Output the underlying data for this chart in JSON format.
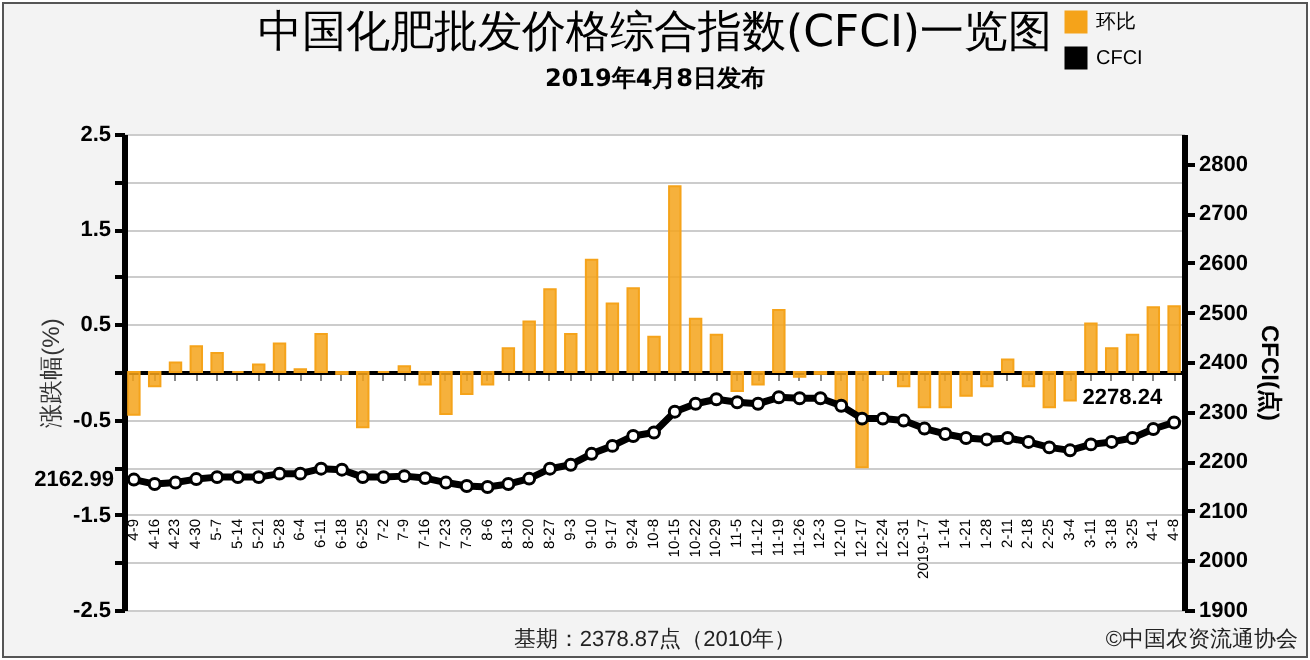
{
  "chart_data": {
    "type": "bar",
    "title": "中国化肥批发价格综合指数(CFCI)一览图",
    "subtitle": "2019年4月8日发布",
    "ylabel": "涨跌幅(%)",
    "y2label": "CFCI(点)",
    "categories": [
      "4-9",
      "4-16",
      "4-23",
      "4-30",
      "5-7",
      "5-14",
      "5-21",
      "5-28",
      "6-4",
      "6-11",
      "6-18",
      "6-25",
      "7-2",
      "7-9",
      "7-16",
      "7-23",
      "7-30",
      "8-6",
      "8-13",
      "8-20",
      "8-27",
      "9-3",
      "9-10",
      "9-17",
      "9-24",
      "10-8",
      "10-15",
      "10-22",
      "10-29",
      "11-5",
      "11-12",
      "11-19",
      "11-26",
      "12-3",
      "12-10",
      "12-17",
      "12-24",
      "12-31",
      "2019-1-7",
      "1-14",
      "1-21",
      "1-28",
      "2-11",
      "2-18",
      "2-25",
      "3-4",
      "3-11",
      "3-18",
      "3-25",
      "4-1",
      "4-8"
    ],
    "series": [
      {
        "name": "环比",
        "color": "#f5a31a",
        "values": [
          -0.45,
          -0.15,
          0.1,
          0.27,
          0.2,
          0,
          0.08,
          0.3,
          0.03,
          0.4,
          -0.02,
          -0.58,
          0,
          0.06,
          -0.13,
          -0.44,
          -0.23,
          -0.13,
          0.25,
          0.53,
          0.87,
          0.4,
          1.18,
          0.72,
          0.88,
          0.37,
          1.95,
          0.56,
          0.39,
          -0.2,
          -0.13,
          0.65,
          -0.05,
          -0.02,
          -0.33,
          -1.0,
          -0.02,
          -0.15,
          -0.37,
          -0.37,
          -0.25,
          -0.15,
          0.13,
          -0.15,
          -0.37,
          -0.3,
          0.51,
          0.25,
          0.39,
          0.68,
          0.69
        ]
      },
      {
        "name": "CFCI",
        "type": "line",
        "axis": "y2",
        "color": "#000000",
        "values": [
          2162.99,
          2154,
          2157,
          2164,
          2168,
          2168,
          2168,
          2175,
          2175,
          2185,
          2183,
          2168,
          2168,
          2170,
          2166,
          2157,
          2150,
          2148,
          2154,
          2165,
          2185,
          2193,
          2215,
          2231,
          2251,
          2258,
          2300,
          2316,
          2325,
          2319,
          2316,
          2329,
          2327,
          2327,
          2312,
          2286,
          2286,
          2282,
          2266,
          2255,
          2247,
          2244,
          2247,
          2239,
          2228,
          2222,
          2234,
          2239,
          2247,
          2265,
          2278.24
        ],
        "value_labels": [
          "2162.99",
          null,
          null,
          null,
          null,
          null,
          null,
          null,
          null,
          null,
          null,
          null,
          null,
          null,
          null,
          null,
          null,
          null,
          null,
          null,
          null,
          null,
          null,
          null,
          null,
          null,
          null,
          null,
          null,
          null,
          null,
          null,
          null,
          null,
          null,
          null,
          null,
          null,
          null,
          null,
          null,
          null,
          null,
          null,
          null,
          null,
          null,
          null,
          null,
          null,
          "2278.24"
        ]
      }
    ],
    "ylim": [
      -2.5,
      2.5
    ],
    "yticks": [
      -2.5,
      {
        "value": -2,
        "label": null
      },
      -1.5,
      {
        "value": -1,
        "label": null
      },
      -0.5,
      {
        "value": 0,
        "label": null
      },
      0.5,
      {
        "value": 1,
        "label": null
      },
      1.5,
      {
        "value": 2,
        "label": null
      },
      2.5
    ],
    "y2lim": [
      1900,
      2860
    ],
    "y2ticks": [
      1900,
      2000,
      2100,
      2200,
      2300,
      2400,
      2500,
      2600,
      2700,
      2800
    ],
    "grid": "y",
    "legend": "top right",
    "marker": "circle",
    "annotations": [
      "基期：2378.87点（2010年）",
      "©中国农资流通协会"
    ]
  }
}
